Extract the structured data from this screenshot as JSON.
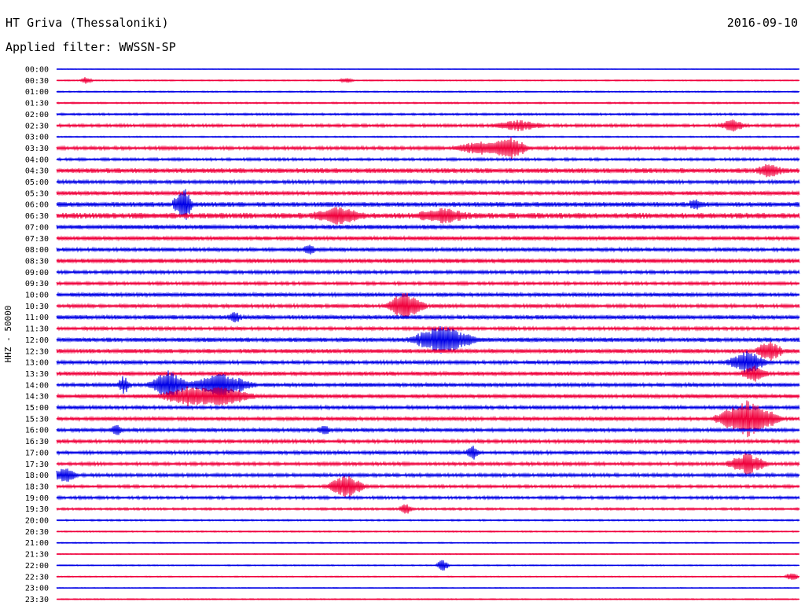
{
  "header": {
    "station": "HT Griva (Thessaloniki)",
    "date": "2016-09-10",
    "filter": "Applied filter: WWSSN-SP"
  },
  "chart_data": {
    "type": "line",
    "title": "HT Griva (Thessaloniki)",
    "ylabel": "HHZ - 50000",
    "row_labels": [
      "00:00",
      "00:30",
      "01:00",
      "01:30",
      "02:00",
      "02:30",
      "03:00",
      "03:30",
      "04:00",
      "04:30",
      "05:00",
      "05:30",
      "06:00",
      "06:30",
      "07:00",
      "07:30",
      "08:00",
      "08:30",
      "09:00",
      "09:30",
      "10:00",
      "10:30",
      "11:00",
      "11:30",
      "12:00",
      "12:30",
      "13:00",
      "13:30",
      "14:00",
      "14:30",
      "15:00",
      "15:30",
      "16:00",
      "16:30",
      "17:00",
      "17:30",
      "18:00",
      "18:30",
      "19:00",
      "19:30",
      "20:00",
      "20:30",
      "21:00",
      "21:30",
      "22:00",
      "22:30",
      "23:00",
      "23:30"
    ],
    "colors": {
      "even": "#0000e6",
      "odd": "#f0003c",
      "text": "#000000"
    },
    "traces_noise": [
      0.3,
      0.5,
      0.6,
      0.7,
      0.9,
      1.3,
      0.6,
      1.5,
      1.2,
      2.2,
      1.6,
      1.8,
      2.2,
      2.6,
      2.0,
      1.8,
      1.7,
      2.0,
      1.5,
      1.4,
      1.8,
      1.6,
      1.9,
      1.5,
      2.0,
      1.9,
      1.6,
      1.8,
      1.7,
      1.8,
      1.6,
      1.7,
      1.7,
      1.6,
      1.6,
      1.5,
      1.5,
      1.3,
      1.3,
      1.0,
      0.7,
      0.6,
      0.5,
      0.5,
      0.5,
      0.5,
      0.4,
      0.5
    ],
    "events": [
      {
        "row": 1,
        "t": 0.04,
        "amp": 5,
        "dur": 0.01
      },
      {
        "row": 1,
        "t": 0.39,
        "amp": 4,
        "dur": 0.01
      },
      {
        "row": 5,
        "t": 0.62,
        "amp": 6,
        "dur": 0.04
      },
      {
        "row": 5,
        "t": 0.91,
        "amp": 8,
        "dur": 0.02
      },
      {
        "row": 7,
        "t": 0.57,
        "amp": 7,
        "dur": 0.04
      },
      {
        "row": 7,
        "t": 0.61,
        "amp": 13,
        "dur": 0.03
      },
      {
        "row": 9,
        "t": 0.96,
        "amp": 7,
        "dur": 0.02
      },
      {
        "row": 12,
        "t": 0.17,
        "amp": 24,
        "dur": 0.015
      },
      {
        "row": 12,
        "t": 0.86,
        "amp": 6,
        "dur": 0.01
      },
      {
        "row": 13,
        "t": 0.38,
        "amp": 10,
        "dur": 0.04
      },
      {
        "row": 13,
        "t": 0.52,
        "amp": 8,
        "dur": 0.04
      },
      {
        "row": 16,
        "t": 0.34,
        "amp": 5,
        "dur": 0.01
      },
      {
        "row": 21,
        "t": 0.47,
        "amp": 18,
        "dur": 0.03
      },
      {
        "row": 22,
        "t": 0.24,
        "amp": 6,
        "dur": 0.01
      },
      {
        "row": 24,
        "t": 0.52,
        "amp": 18,
        "dur": 0.05
      },
      {
        "row": 25,
        "t": 0.96,
        "amp": 14,
        "dur": 0.02
      },
      {
        "row": 26,
        "t": 0.93,
        "amp": 14,
        "dur": 0.03
      },
      {
        "row": 27,
        "t": 0.94,
        "amp": 9,
        "dur": 0.02
      },
      {
        "row": 28,
        "t": 0.09,
        "amp": 10,
        "dur": 0.01
      },
      {
        "row": 28,
        "t": 0.15,
        "amp": 18,
        "dur": 0.03
      },
      {
        "row": 28,
        "t": 0.22,
        "amp": 14,
        "dur": 0.05
      },
      {
        "row": 29,
        "t": 0.18,
        "amp": 12,
        "dur": 0.05
      },
      {
        "row": 29,
        "t": 0.23,
        "amp": 10,
        "dur": 0.04
      },
      {
        "row": 31,
        "t": 0.93,
        "amp": 22,
        "dur": 0.05
      },
      {
        "row": 32,
        "t": 0.08,
        "amp": 6,
        "dur": 0.01
      },
      {
        "row": 32,
        "t": 0.36,
        "amp": 6,
        "dur": 0.01
      },
      {
        "row": 34,
        "t": 0.56,
        "amp": 10,
        "dur": 0.01
      },
      {
        "row": 35,
        "t": 0.93,
        "amp": 14,
        "dur": 0.03
      },
      {
        "row": 36,
        "t": 0.01,
        "amp": 9,
        "dur": 0.02
      },
      {
        "row": 37,
        "t": 0.39,
        "amp": 14,
        "dur": 0.03
      },
      {
        "row": 39,
        "t": 0.47,
        "amp": 7,
        "dur": 0.01
      },
      {
        "row": 44,
        "t": 0.52,
        "amp": 8,
        "dur": 0.01
      },
      {
        "row": 45,
        "t": 0.99,
        "amp": 6,
        "dur": 0.01
      }
    ]
  }
}
